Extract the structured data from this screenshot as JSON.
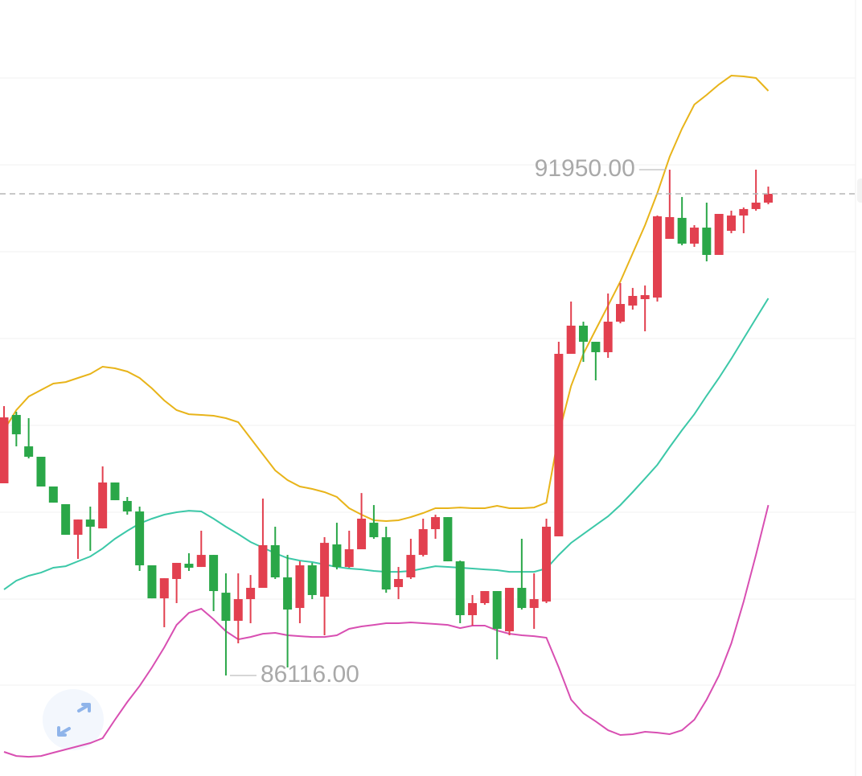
{
  "chart_data": {
    "type": "candlestick",
    "up_color": "#e2404f",
    "down_color": "#2aa748",
    "ylim": [
      84957,
      93907
    ],
    "open": [
      88333,
      89121,
      88759,
      88639,
      88296,
      88092,
      87739,
      87915,
      87813,
      88342,
      88129,
      88008,
      87387,
      87006,
      87229,
      87405,
      87368,
      87507,
      87071,
      86747,
      86997,
      87127,
      87619,
      87248,
      86895,
      87387,
      87025,
      87628,
      87368,
      87572,
      87878,
      87711,
      87136,
      87248,
      87507,
      87804,
      87943,
      87433,
      86812,
      86951,
      87090,
      86626,
      87127,
      86895,
      86969,
      87721,
      89826,
      90151,
      89965,
      89845,
      90197,
      90383,
      90457,
      90475,
      91152,
      91394,
      91097,
      91282,
      90967,
      91245,
      91421,
      91496,
      91570
    ],
    "high": [
      89223,
      89158,
      89084,
      88639,
      88296,
      88092,
      87915,
      88064,
      88528,
      88342,
      88175,
      88064,
      87387,
      87238,
      87415,
      87526,
      87786,
      87507,
      87294,
      87294,
      87275,
      88157,
      87832,
      87507,
      87433,
      87415,
      87711,
      87878,
      87786,
      88221,
      88082,
      87832,
      87368,
      87693,
      87925,
      87971,
      87943,
      87442,
      87044,
      87090,
      87090,
      87127,
      87693,
      87294,
      87925,
      89965,
      90429,
      90197,
      89965,
      90522,
      90642,
      90586,
      90614,
      91421,
      91950,
      91635,
      91310,
      91570,
      91440,
      91477,
      91514,
      91950,
      91755
    ],
    "low": [
      88333,
      88759,
      88620,
      88296,
      88110,
      87739,
      87461,
      87554,
      87813,
      88138,
      87971,
      87322,
      87006,
      86673,
      86951,
      87322,
      87368,
      86858,
      86116,
      86487,
      86719,
      87127,
      87229,
      86209,
      86719,
      86997,
      86580,
      87340,
      87359,
      87572,
      87693,
      87071,
      86997,
      87229,
      87489,
      87693,
      87433,
      86719,
      86691,
      86932,
      86302,
      86580,
      86877,
      86654,
      86951,
      87721,
      89826,
      89733,
      89520,
      89780,
      90178,
      90336,
      90086,
      90429,
      91152,
      91078,
      91060,
      90893,
      90967,
      91217,
      91217,
      91477,
      91551
    ],
    "close": [
      89093,
      88898,
      88639,
      88296,
      88110,
      87739,
      87915,
      87832,
      88342,
      88138,
      88008,
      87387,
      87006,
      87238,
      87415,
      87359,
      87507,
      87090,
      86747,
      86997,
      87127,
      87619,
      87248,
      86877,
      87387,
      87044,
      87646,
      87368,
      87572,
      87925,
      87711,
      87108,
      87229,
      87507,
      87804,
      87943,
      87433,
      86812,
      86951,
      87090,
      86654,
      87127,
      86895,
      86997,
      87832,
      89826,
      90151,
      89965,
      89845,
      90197,
      90401,
      90494,
      90503,
      91412,
      91403,
      91097,
      91282,
      90967,
      91440,
      91421,
      91496,
      91570,
      91672
    ],
    "bands": [
      {
        "color": "#e8b41a",
        "values": [
          88945,
          89177,
          89334,
          89409,
          89483,
          89501,
          89548,
          89594,
          89678,
          89659,
          89622,
          89548,
          89427,
          89288,
          89177,
          89130,
          89121,
          89112,
          89084,
          89038,
          88852,
          88667,
          88481,
          88370,
          88296,
          88268,
          88231,
          88175,
          88045,
          87971,
          87906,
          87897,
          87906,
          87943,
          87990,
          88045,
          88045,
          88054,
          88045,
          88045,
          88073,
          88045,
          88045,
          88054,
          88110,
          88898,
          89455,
          89826,
          90104,
          90382,
          90661,
          90985,
          91310,
          91681,
          92098,
          92423,
          92701,
          92813,
          92933,
          93035,
          93026,
          93007,
          92859
        ]
      },
      {
        "color": "#3cc8a8",
        "values": [
          87108,
          87210,
          87266,
          87303,
          87359,
          87377,
          87433,
          87489,
          87581,
          87693,
          87785,
          87869,
          87925,
          87971,
          87999,
          88017,
          88008,
          87925,
          87832,
          87748,
          87656,
          87591,
          87526,
          87470,
          87442,
          87424,
          87396,
          87368,
          87350,
          87340,
          87322,
          87312,
          87312,
          87322,
          87350,
          87377,
          87368,
          87359,
          87350,
          87340,
          87331,
          87312,
          87312,
          87312,
          87350,
          87507,
          87646,
          87748,
          87850,
          87952,
          88082,
          88231,
          88388,
          88546,
          88750,
          88945,
          89130,
          89344,
          89548,
          89770,
          90002,
          90234,
          90466
        ]
      },
      {
        "color": "#d84fb2",
        "values": [
          85235,
          85188,
          85179,
          85188,
          85226,
          85263,
          85300,
          85337,
          85393,
          85606,
          85810,
          85995,
          86209,
          86441,
          86700,
          86839,
          86886,
          86765,
          86626,
          86533,
          86561,
          86598,
          86608,
          86580,
          86570,
          86561,
          86561,
          86580,
          86654,
          86682,
          86700,
          86719,
          86719,
          86728,
          86719,
          86710,
          86700,
          86663,
          86691,
          86691,
          86635,
          86598,
          86580,
          86570,
          86552,
          86209,
          85838,
          85680,
          85587,
          85485,
          85430,
          85439,
          85467,
          85457,
          85439,
          85485,
          85606,
          85838,
          86116,
          86487,
          86969,
          87507,
          88082
        ]
      }
    ],
    "annotations": [
      {
        "label": "91950.00",
        "value": 91950,
        "of": "high"
      },
      {
        "label": "86116.00",
        "value": 86116,
        "of": "low"
      }
    ],
    "last_price_line": true
  }
}
